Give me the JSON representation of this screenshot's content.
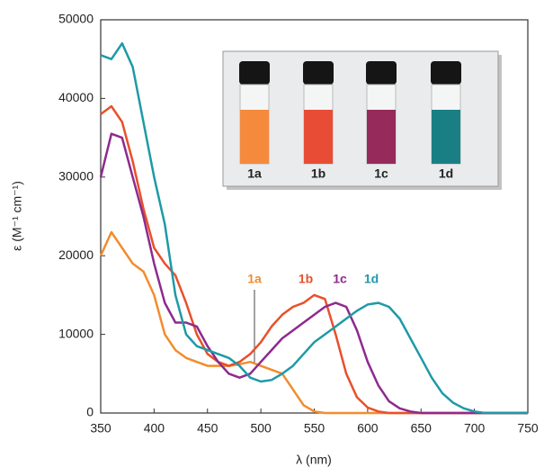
{
  "chart_data": {
    "type": "line",
    "xlabel": "λ (nm)",
    "ylabel": "ε (M⁻¹ cm⁻¹)",
    "x": [
      350,
      360,
      370,
      380,
      390,
      400,
      410,
      420,
      430,
      440,
      450,
      460,
      470,
      480,
      490,
      500,
      510,
      520,
      530,
      540,
      550,
      560,
      570,
      580,
      590,
      600,
      610,
      620,
      630,
      640,
      650,
      660,
      670,
      680,
      690,
      700,
      710,
      720,
      730,
      740,
      750
    ],
    "series": [
      {
        "name": "1a",
        "color": "#f28c2e",
        "values": [
          20000,
          23000,
          21000,
          19000,
          18000,
          15000,
          10000,
          8000,
          7000,
          6500,
          6000,
          6000,
          6000,
          6200,
          6500,
          6000,
          5500,
          5000,
          3000,
          1000,
          200,
          0,
          0,
          0,
          0,
          0,
          0,
          0,
          0,
          0,
          0,
          0,
          0,
          0,
          0,
          0,
          0,
          0,
          0,
          0,
          0
        ]
      },
      {
        "name": "1b",
        "color": "#e8502a",
        "values": [
          38000,
          39000,
          37000,
          32000,
          26000,
          21000,
          19000,
          17500,
          14000,
          10000,
          7500,
          6500,
          6000,
          6500,
          7500,
          9000,
          11000,
          12500,
          13500,
          14000,
          15000,
          14500,
          10000,
          5000,
          2000,
          700,
          200,
          0,
          0,
          0,
          0,
          0,
          0,
          0,
          0,
          0,
          0,
          0,
          0,
          0,
          0
        ]
      },
      {
        "name": "1c",
        "color": "#8e2a8e",
        "values": [
          30000,
          35500,
          35000,
          30000,
          25000,
          19000,
          14000,
          11500,
          11500,
          11000,
          8500,
          6500,
          5000,
          4500,
          5000,
          6500,
          8000,
          9500,
          10500,
          11500,
          12500,
          13500,
          14000,
          13500,
          10500,
          6500,
          3500,
          1500,
          600,
          200,
          0,
          0,
          0,
          0,
          0,
          0,
          0,
          0,
          0,
          0,
          0
        ]
      },
      {
        "name": "1d",
        "color": "#1e9aa6",
        "values": [
          45500,
          45000,
          47000,
          44000,
          37000,
          30000,
          24000,
          15000,
          10000,
          8500,
          8000,
          7500,
          7000,
          6000,
          4500,
          4000,
          4200,
          5000,
          6000,
          7500,
          9000,
          10000,
          11000,
          12000,
          13000,
          13800,
          14000,
          13500,
          12000,
          9500,
          7000,
          4500,
          2500,
          1300,
          600,
          200,
          0,
          0,
          0,
          0,
          0
        ]
      }
    ],
    "xlim": [
      350,
      750
    ],
    "xticks": [
      350,
      400,
      450,
      500,
      550,
      600,
      650,
      700,
      750
    ],
    "ylim": [
      0,
      50000
    ],
    "yticks": [
      0,
      10000,
      20000,
      30000,
      40000,
      50000
    ],
    "grid": false
  }
}
